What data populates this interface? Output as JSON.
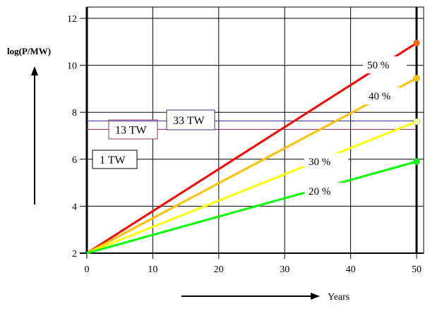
{
  "chart_data": {
    "type": "line",
    "title": "",
    "xlabel": "Years",
    "ylabel": "log(P/MW)",
    "xlim": [
      0,
      50
    ],
    "ylim": [
      2,
      12
    ],
    "x_ticks": [
      "0",
      "10",
      "20",
      "30",
      "40",
      "50"
    ],
    "y_ticks": [
      "2",
      "4",
      "6",
      "8",
      "10",
      "12"
    ],
    "grid": true,
    "series": [
      {
        "name": "50 %",
        "x": [
          0,
          50
        ],
        "y": [
          2,
          10.95
        ],
        "color": "#ff0000",
        "marker_color": "#ff6600"
      },
      {
        "name": "40 %",
        "x": [
          0,
          50
        ],
        "y": [
          2,
          9.45
        ],
        "color": "#ffc000",
        "marker_color": "#ffc000"
      },
      {
        "name": "30 %",
        "x": [
          0,
          50
        ],
        "y": [
          2,
          7.6
        ],
        "color": "#ffff00",
        "marker_color": "#ffff99"
      },
      {
        "name": "20 %",
        "x": [
          0,
          50
        ],
        "y": [
          2,
          5.9
        ],
        "color": "#00ff00",
        "marker_color": "#00ff00"
      }
    ],
    "reference_lines": [
      {
        "label": "1 TW",
        "y": 6,
        "color": "#000000"
      },
      {
        "label": "13 TW",
        "y": 7.27,
        "color": "#993366"
      },
      {
        "label": "33 TW",
        "y": 7.63,
        "color": "#333399"
      }
    ]
  }
}
